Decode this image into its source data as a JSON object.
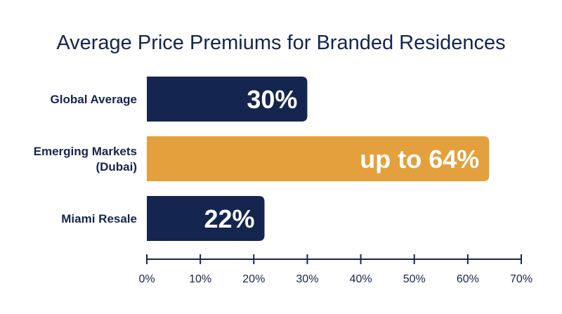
{
  "chart_data": {
    "type": "bar",
    "orientation": "horizontal",
    "title": "Average Price Premiums for Branded Residences",
    "categories": [
      {
        "lines": [
          "Global Average"
        ]
      },
      {
        "lines": [
          "Emerging Markets",
          "(Dubai)"
        ]
      },
      {
        "lines": [
          "Miami Resale"
        ]
      }
    ],
    "values": [
      30,
      64,
      22
    ],
    "data_labels": [
      "30%",
      "up to 64%",
      "22%"
    ],
    "bar_colors": [
      "#14254f",
      "#e3a03c",
      "#14254f"
    ],
    "xlim": [
      0,
      70
    ],
    "xticks": [
      0,
      10,
      20,
      30,
      40,
      50,
      60,
      70
    ],
    "xtick_labels": [
      "0%",
      "10%",
      "20%",
      "30%",
      "40%",
      "50%",
      "60%",
      "70%"
    ],
    "xlabel": "",
    "ylabel": "",
    "grid": false,
    "legend": "none",
    "colors": {
      "text": "#14254f",
      "axis": "#14254f",
      "label_on_bar": "#ffffff"
    }
  }
}
